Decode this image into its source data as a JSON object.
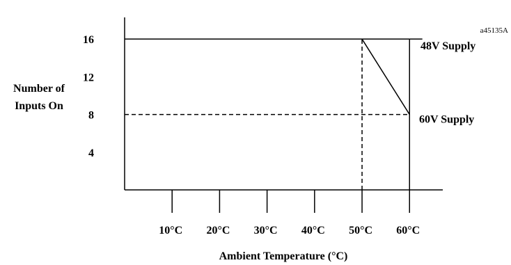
{
  "figure_id": "a45135A",
  "chart_data": {
    "type": "line",
    "xlabel": "Ambient Temperature (°C)",
    "ylabel": [
      "Number of",
      "Inputs On"
    ],
    "x_ticks": [
      10,
      20,
      30,
      40,
      50,
      60
    ],
    "x_tick_labels": [
      "10°C",
      "20°C",
      "30°C",
      "40°C",
      "50°C",
      "60°C"
    ],
    "y_ticks": [
      4,
      8,
      12,
      16
    ],
    "y_tick_labels": [
      "4",
      "8",
      "12",
      "16"
    ],
    "xlim": [
      0,
      67
    ],
    "ylim": [
      0,
      18.3
    ],
    "grid": false,
    "series": [
      {
        "name": "48V Supply",
        "style": "solid",
        "x": [
          0,
          60
        ],
        "y": [
          16,
          16
        ]
      },
      {
        "name": "60V Supply",
        "style": "solid",
        "x": [
          50,
          60
        ],
        "y": [
          16,
          8
        ]
      }
    ],
    "reference_lines": [
      {
        "orientation": "horizontal",
        "value": 8,
        "from": 0,
        "to": 60,
        "style": "dashed"
      },
      {
        "orientation": "vertical",
        "value": 50,
        "from": 0,
        "to": 16,
        "style": "dashed"
      },
      {
        "orientation": "vertical",
        "value": 60,
        "from": 0,
        "to": 16,
        "style": "solid"
      }
    ]
  }
}
